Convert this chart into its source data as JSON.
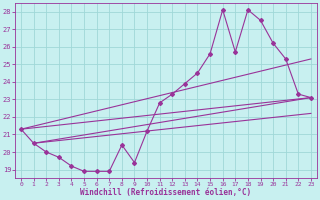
{
  "xlabel": "Windchill (Refroidissement éolien,°C)",
  "background_color": "#c8f0f0",
  "line_color": "#993399",
  "grid_color": "#a0d8d8",
  "xlim": [
    -0.5,
    23.5
  ],
  "ylim": [
    18.5,
    28.5
  ],
  "xticks": [
    0,
    1,
    2,
    3,
    4,
    5,
    6,
    7,
    8,
    9,
    10,
    11,
    12,
    13,
    14,
    15,
    16,
    17,
    18,
    19,
    20,
    21,
    22,
    23
  ],
  "yticks": [
    19,
    20,
    21,
    22,
    23,
    24,
    25,
    26,
    27,
    28
  ],
  "line1_x": [
    0,
    1,
    2,
    3,
    4,
    5,
    6,
    7,
    8,
    9,
    10,
    11,
    12,
    13,
    14,
    15,
    16,
    17,
    18,
    19,
    20,
    21,
    22,
    23
  ],
  "line1_y": [
    21.3,
    20.5,
    20.0,
    19.7,
    19.2,
    18.9,
    18.9,
    18.9,
    20.4,
    19.4,
    21.2,
    22.8,
    23.3,
    23.9,
    24.5,
    25.6,
    28.1,
    25.7,
    28.1,
    27.5,
    26.2,
    25.3,
    23.3,
    23.1
  ],
  "line2_x": [
    0,
    23
  ],
  "line2_y": [
    21.3,
    23.1
  ],
  "line3_x": [
    1,
    23
  ],
  "line3_y": [
    20.5,
    23.1
  ],
  "line4_x": [
    1,
    23
  ],
  "line4_y": [
    20.5,
    22.2
  ],
  "line5_x": [
    0,
    23
  ],
  "line5_y": [
    21.3,
    25.3
  ]
}
